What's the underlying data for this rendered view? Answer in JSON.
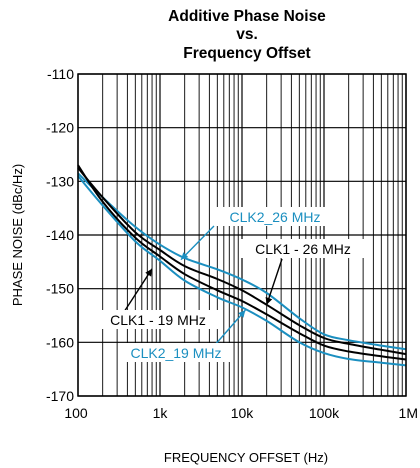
{
  "chart_data": {
    "type": "line",
    "title_lines": [
      "Additive Phase Noise",
      "vs.",
      "Frequency Offset"
    ],
    "xlabel": "FREQUENCY OFFSET (Hz)",
    "ylabel": "PHASE NOISE (dBc/Hz)",
    "x_scale": "log",
    "xlim": [
      100,
      1000000
    ],
    "ylim": [
      -170,
      -110
    ],
    "x_ticks": [
      {
        "value": 100,
        "label": "100"
      },
      {
        "value": 1000,
        "label": "1k"
      },
      {
        "value": 10000,
        "label": "10k"
      },
      {
        "value": 100000,
        "label": "100k"
      },
      {
        "value": 1000000,
        "label": "1M"
      }
    ],
    "y_ticks": [
      -170,
      -160,
      -150,
      -140,
      -130,
      -120,
      -110
    ],
    "grid": true,
    "colors": {
      "black": "#000000",
      "blue": "#1b8fc0"
    },
    "series": [
      {
        "name": "CLK2_26 MHz",
        "color": "#1b8fc0",
        "points": [
          [
            100,
            -128.5
          ],
          [
            200,
            -133
          ],
          [
            500,
            -138.5
          ],
          [
            1000,
            -141.8
          ],
          [
            2000,
            -144.3
          ],
          [
            5000,
            -146.4
          ],
          [
            10000,
            -148.3
          ],
          [
            20000,
            -150.8
          ],
          [
            50000,
            -155.5
          ],
          [
            100000,
            -158.5
          ],
          [
            200000,
            -159.6
          ],
          [
            500000,
            -160.6
          ],
          [
            1000000,
            -161.3
          ]
        ]
      },
      {
        "name": "CLK1 - 26 MHz",
        "color": "#000000",
        "points": [
          [
            100,
            -127.5
          ],
          [
            200,
            -133
          ],
          [
            500,
            -139.5
          ],
          [
            1000,
            -142.8
          ],
          [
            2000,
            -145.8
          ],
          [
            5000,
            -148.2
          ],
          [
            10000,
            -150.3
          ],
          [
            20000,
            -153
          ],
          [
            50000,
            -156.8
          ],
          [
            100000,
            -159.2
          ],
          [
            200000,
            -160.3
          ],
          [
            500000,
            -161.4
          ],
          [
            1000000,
            -162.2
          ]
        ]
      },
      {
        "name": "CLK1 - 19 MHz",
        "color": "#000000",
        "points": [
          [
            100,
            -127
          ],
          [
            200,
            -133.8
          ],
          [
            500,
            -140.5
          ],
          [
            1000,
            -144
          ],
          [
            2000,
            -147.3
          ],
          [
            5000,
            -150.3
          ],
          [
            10000,
            -152.3
          ],
          [
            20000,
            -154.8
          ],
          [
            50000,
            -158.3
          ],
          [
            100000,
            -160.6
          ],
          [
            200000,
            -161.7
          ],
          [
            500000,
            -162.6
          ],
          [
            1000000,
            -163.2
          ]
        ]
      },
      {
        "name": "CLK2_19 MHz",
        "color": "#1b8fc0",
        "points": [
          [
            100,
            -129
          ],
          [
            200,
            -134.5
          ],
          [
            500,
            -141.2
          ],
          [
            1000,
            -144.8
          ],
          [
            2000,
            -148.5
          ],
          [
            5000,
            -151.6
          ],
          [
            10000,
            -153.5
          ],
          [
            20000,
            -156
          ],
          [
            50000,
            -160
          ],
          [
            100000,
            -162
          ],
          [
            200000,
            -163.1
          ],
          [
            500000,
            -163.8
          ],
          [
            1000000,
            -164.3
          ]
        ]
      }
    ],
    "annotations": [
      {
        "text": "CLK2_26 MHz",
        "color": "#1b8fc0",
        "target": [
          1800,
          -144.6
        ]
      },
      {
        "text": "CLK1 - 26 MHz",
        "color": "#000000",
        "target": [
          20000,
          -153
        ]
      },
      {
        "text": "CLK1 - 19 MHz",
        "color": "#000000",
        "target": [
          800,
          -146.3
        ]
      },
      {
        "text": "CLK2_19 MHz",
        "color": "#1b8fc0",
        "target": [
          11000,
          -154
        ]
      }
    ]
  }
}
